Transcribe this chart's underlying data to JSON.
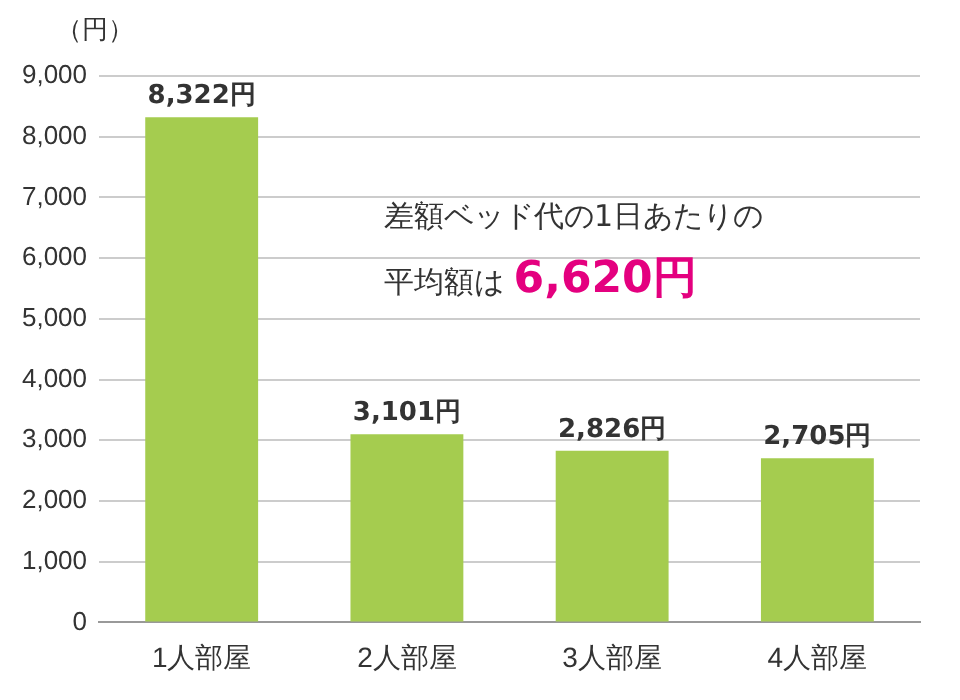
{
  "chart_data": {
    "type": "bar",
    "ylabel": "（円）",
    "categories": [
      "1人部屋",
      "2人部屋",
      "3人部屋",
      "4人部屋"
    ],
    "values": [
      8322,
      3101,
      2826,
      2705
    ],
    "color": "#a5cc4f",
    "value_labels": [
      "8,322円",
      "3,101円",
      "2,826円",
      "2,705円"
    ],
    "ylim": [
      0,
      9000
    ],
    "yticks": [
      {
        "value": 0,
        "label": "0"
      },
      {
        "value": 1000,
        "label": "1,000"
      },
      {
        "value": 2000,
        "label": "2,000"
      },
      {
        "value": 3000,
        "label": "3,000"
      },
      {
        "value": 4000,
        "label": "4,000"
      },
      {
        "value": 5000,
        "label": "5,000"
      },
      {
        "value": 6000,
        "label": "6,000"
      },
      {
        "value": 7000,
        "label": "7,000"
      },
      {
        "value": 8000,
        "label": "8,000"
      },
      {
        "value": 9000,
        "label": "9,000"
      }
    ],
    "grid": "y",
    "legend": false,
    "annotations": [
      "差額ベッド代の1日あたりの",
      "平均額は",
      "6,620円"
    ]
  }
}
